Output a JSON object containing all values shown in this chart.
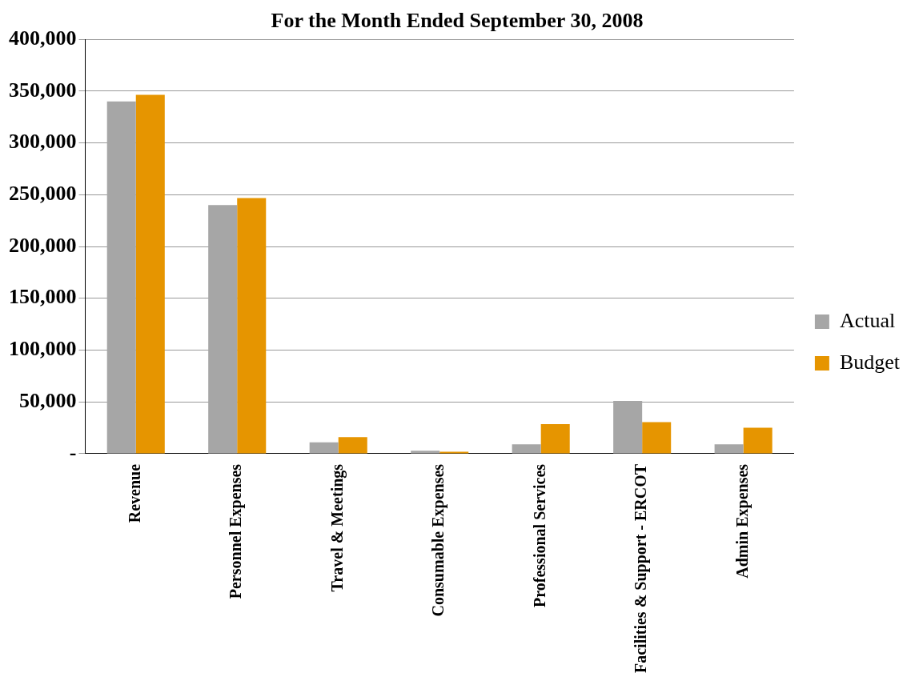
{
  "chart_data": {
    "type": "bar",
    "title": "For the Month Ended September 30, 2008",
    "categories": [
      "Revenue",
      "Personnel Expenses",
      "Travel & Meetings",
      "Consumable Expenses",
      "Professional Services",
      "Facilities & Support - ERCOT",
      "Admin Expenses"
    ],
    "series": [
      {
        "name": "Actual",
        "color": "#a6a6a6",
        "values": [
          340000,
          240000,
          11000,
          2800,
          9000,
          51000,
          9000
        ]
      },
      {
        "name": "Budget",
        "color": "#e69500",
        "values": [
          346500,
          246700,
          16000,
          1800,
          28500,
          30500,
          25000
        ]
      }
    ],
    "ylim": [
      0,
      400000
    ],
    "yticks": [
      {
        "value": 0,
        "label": "-"
      },
      {
        "value": 50000,
        "label": "50,000"
      },
      {
        "value": 100000,
        "label": "100,000"
      },
      {
        "value": 150000,
        "label": "150,000"
      },
      {
        "value": 200000,
        "label": "200,000"
      },
      {
        "value": 250000,
        "label": "250,000"
      },
      {
        "value": 300000,
        "label": "300,000"
      },
      {
        "value": 350000,
        "label": "350,000"
      },
      {
        "value": 400000,
        "label": "400,000"
      }
    ],
    "grid": "y",
    "legend": "right"
  }
}
